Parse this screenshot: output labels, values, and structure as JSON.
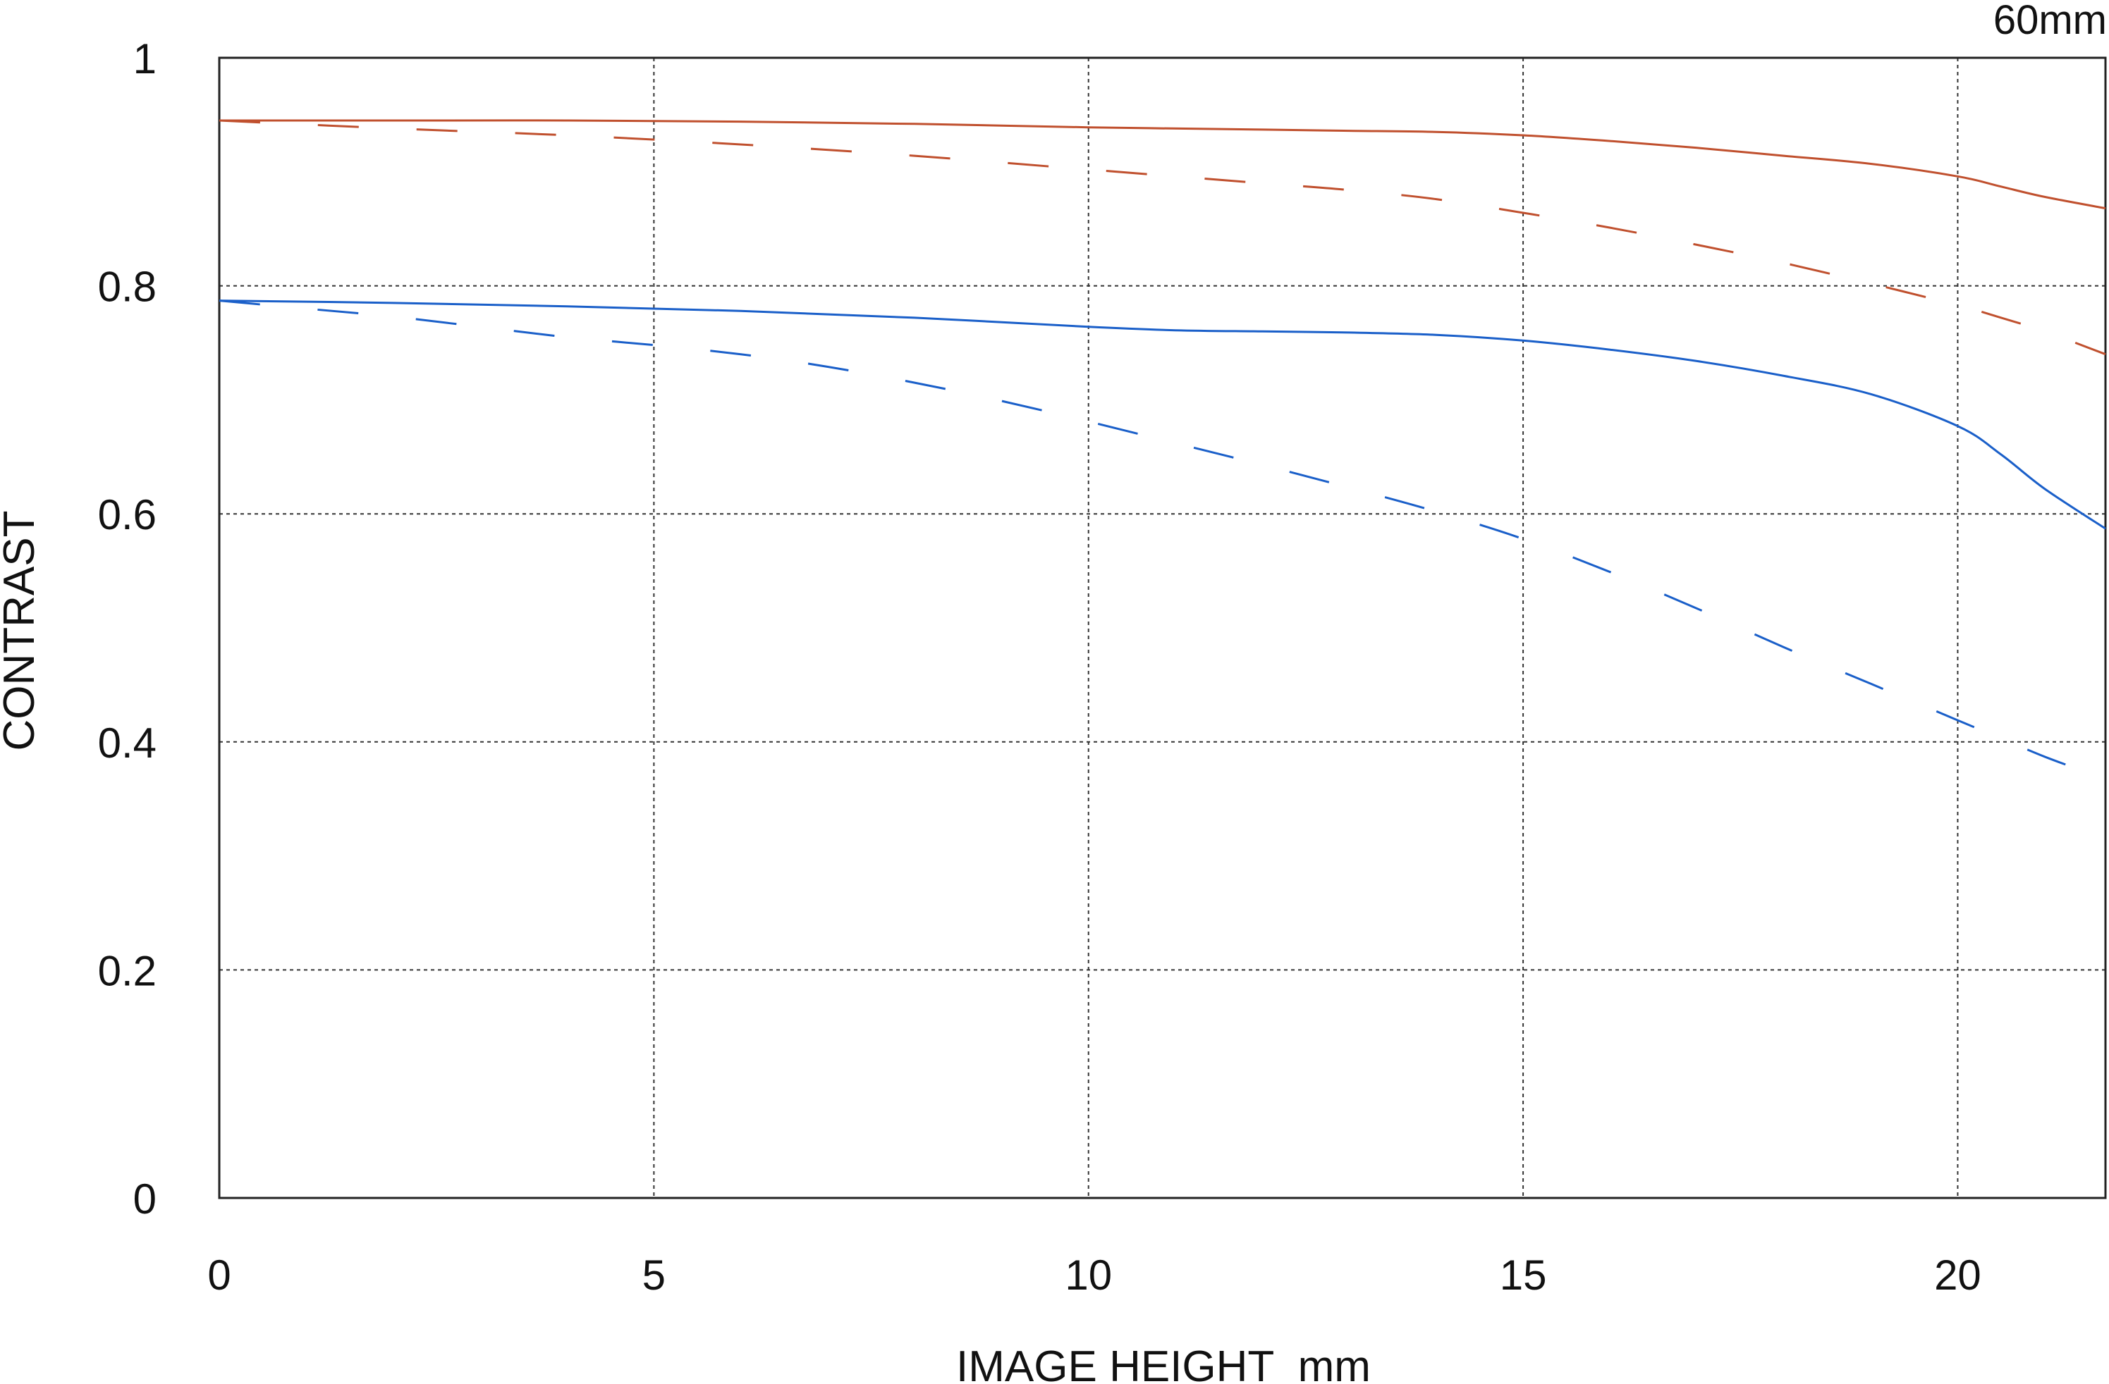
{
  "chart_data": {
    "type": "line",
    "title": "60mm",
    "xlabel": "IMAGE HEIGHT  mm",
    "ylabel": "CONTRAST",
    "xlim": [
      0,
      21.7
    ],
    "ylim": [
      0,
      1
    ],
    "x_ticks": [
      0,
      5,
      10,
      15,
      20
    ],
    "x_tick_labels": [
      "0",
      "5",
      "10",
      "15",
      "20"
    ],
    "y_ticks": [
      0,
      0.2,
      0.4,
      0.6,
      0.8,
      1
    ],
    "y_tick_labels": [
      "0",
      "0.2",
      "0.4",
      "0.6",
      "0.8",
      "1"
    ],
    "grid": true,
    "legend": "none",
    "series": [
      {
        "color": "#c0502e",
        "style": "solid",
        "x": [
          0,
          2,
          4,
          6,
          8,
          10,
          12,
          13,
          14,
          15,
          16,
          17,
          18,
          19,
          20,
          20.5,
          21,
          21.7
        ],
        "y": [
          0.945,
          0.945,
          0.945,
          0.944,
          0.942,
          0.939,
          0.937,
          0.936,
          0.935,
          0.932,
          0.927,
          0.921,
          0.914,
          0.907,
          0.896,
          0.887,
          0.878,
          0.868
        ]
      },
      {
        "color": "#c0502e",
        "style": "dashed",
        "x": [
          0,
          2,
          4,
          6,
          8,
          10,
          12,
          13,
          14,
          15,
          16,
          17,
          18,
          19,
          20,
          20.5,
          21,
          21.7
        ],
        "y": [
          0.945,
          0.938,
          0.932,
          0.924,
          0.914,
          0.902,
          0.89,
          0.884,
          0.876,
          0.864,
          0.851,
          0.836,
          0.82,
          0.802,
          0.783,
          0.772,
          0.76,
          0.74
        ]
      },
      {
        "color": "#1a5fc9",
        "style": "solid",
        "x": [
          0,
          2,
          4,
          6,
          8,
          10,
          11,
          12,
          13,
          14,
          15,
          16,
          17,
          18,
          19,
          20,
          20.5,
          21,
          21.7
        ],
        "y": [
          0.787,
          0.785,
          0.782,
          0.778,
          0.772,
          0.764,
          0.761,
          0.76,
          0.759,
          0.757,
          0.752,
          0.744,
          0.734,
          0.721,
          0.705,
          0.677,
          0.652,
          0.622,
          0.587
        ]
      },
      {
        "color": "#1a5fc9",
        "style": "dashed",
        "x": [
          0,
          1,
          2,
          3,
          4,
          5,
          6,
          7,
          8,
          9,
          10,
          11,
          12,
          13,
          14,
          15,
          16,
          17,
          18,
          19,
          20,
          20.5,
          21,
          21.5
        ],
        "y": [
          0.787,
          0.78,
          0.773,
          0.764,
          0.755,
          0.748,
          0.74,
          0.729,
          0.715,
          0.699,
          0.681,
          0.662,
          0.643,
          0.623,
          0.602,
          0.578,
          0.549,
          0.517,
          0.483,
          0.451,
          0.419,
          0.403,
          0.387,
          0.373
        ]
      }
    ]
  }
}
